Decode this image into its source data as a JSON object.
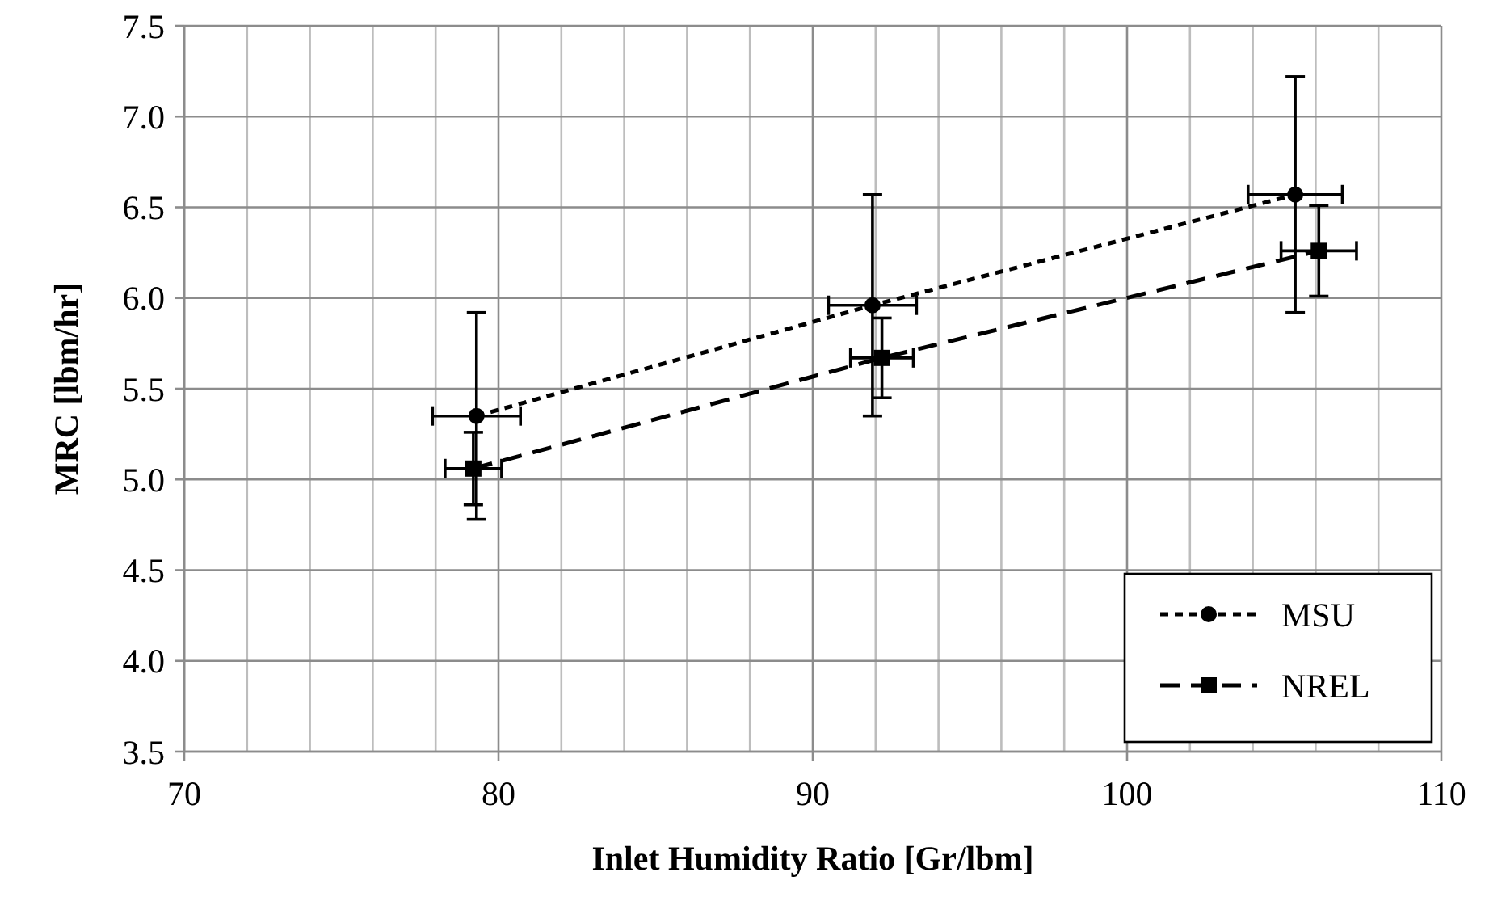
{
  "chart_data": {
    "type": "line",
    "xlabel": "Inlet Humidity Ratio [Gr/lbm]",
    "ylabel": "MRC [lbm/hr]",
    "xlim": [
      70,
      110
    ],
    "ylim": [
      3.5,
      7.5
    ],
    "xticks": [
      70,
      {
        "value": 72,
        "label": null
      },
      {
        "value": 74,
        "label": null
      },
      {
        "value": 76,
        "label": null
      },
      {
        "value": 78,
        "label": null
      },
      80,
      {
        "value": 82,
        "label": null
      },
      {
        "value": 84,
        "label": null
      },
      {
        "value": 86,
        "label": null
      },
      {
        "value": 88,
        "label": null
      },
      90,
      {
        "value": 92,
        "label": null
      },
      {
        "value": 94,
        "label": null
      },
      {
        "value": 96,
        "label": null
      },
      {
        "value": 98,
        "label": null
      },
      100,
      {
        "value": 102,
        "label": null
      },
      {
        "value": 104,
        "label": null
      },
      {
        "value": 106,
        "label": null
      },
      {
        "value": 108,
        "label": null
      },
      110
    ],
    "yticks": [
      3.5,
      {
        "value": 4,
        "label": "4.0"
      },
      4.5,
      {
        "value": 5,
        "label": "5.0"
      },
      5.5,
      {
        "value": 6,
        "label": "6.0"
      },
      6.5,
      {
        "value": 7,
        "label": "7.0"
      },
      7.5
    ],
    "grid": true,
    "legend": "bottom right",
    "series": [
      {
        "name": "MSU",
        "color": "#000000",
        "marker": "circle",
        "line_style": "dotted",
        "x": [
          79.3,
          91.9,
          105.35
        ],
        "values": [
          5.35,
          5.96,
          6.57
        ],
        "errors": [
          0.57,
          0.61,
          0.65
        ],
        "xerrors": [
          1.4,
          1.4,
          1.5
        ]
      },
      {
        "name": "NREL",
        "color": "#000000",
        "marker": "square",
        "line_style": "dashed",
        "x": [
          79.2,
          92.2,
          106.1
        ],
        "values": [
          5.06,
          5.67,
          6.26
        ],
        "errors": [
          0.2,
          0.22,
          0.25
        ],
        "xerrors": [
          0.9,
          1.0,
          1.2
        ]
      }
    ]
  }
}
